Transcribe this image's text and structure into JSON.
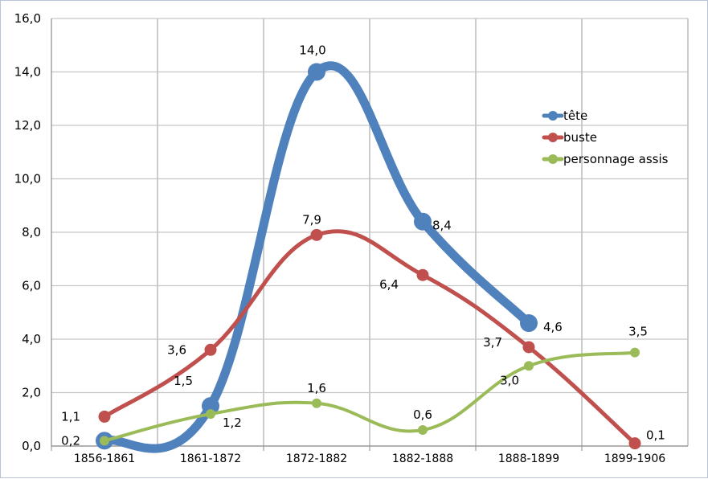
{
  "chart_data": {
    "type": "line",
    "categories": [
      "1856-1861",
      "1861-1872",
      "1872-1882",
      "1882-1888",
      "1888-1899",
      "1899-1906"
    ],
    "ylim": [
      0,
      16
    ],
    "yticks": [
      "0,0",
      "2,0",
      "4,0",
      "6,0",
      "8,0",
      "10,0",
      "12,0",
      "14,0",
      "16,0"
    ],
    "grid": true,
    "smooth": true,
    "legend_position": "right",
    "series": [
      {
        "name": "tête",
        "color": "#4f81bd",
        "values": [
          0.2,
          1.5,
          14.0,
          8.4,
          4.6,
          null
        ],
        "labels": [
          "0,2",
          "1,5",
          "14,0",
          "8,4",
          "4,6",
          null
        ]
      },
      {
        "name": "buste",
        "color": "#c0504d",
        "values": [
          1.1,
          3.6,
          7.9,
          6.4,
          3.7,
          0.1
        ],
        "labels": [
          "1,1",
          "3,6",
          "7,9",
          "6,4",
          "3,7",
          "0,1"
        ]
      },
      {
        "name": "personnage assis",
        "color": "#9bbb59",
        "values": [
          0.2,
          1.2,
          1.6,
          0.6,
          3.0,
          3.5
        ],
        "labels": [
          null,
          "1,2",
          "1,6",
          "0,6",
          "3,0",
          "3,5"
        ]
      }
    ]
  }
}
